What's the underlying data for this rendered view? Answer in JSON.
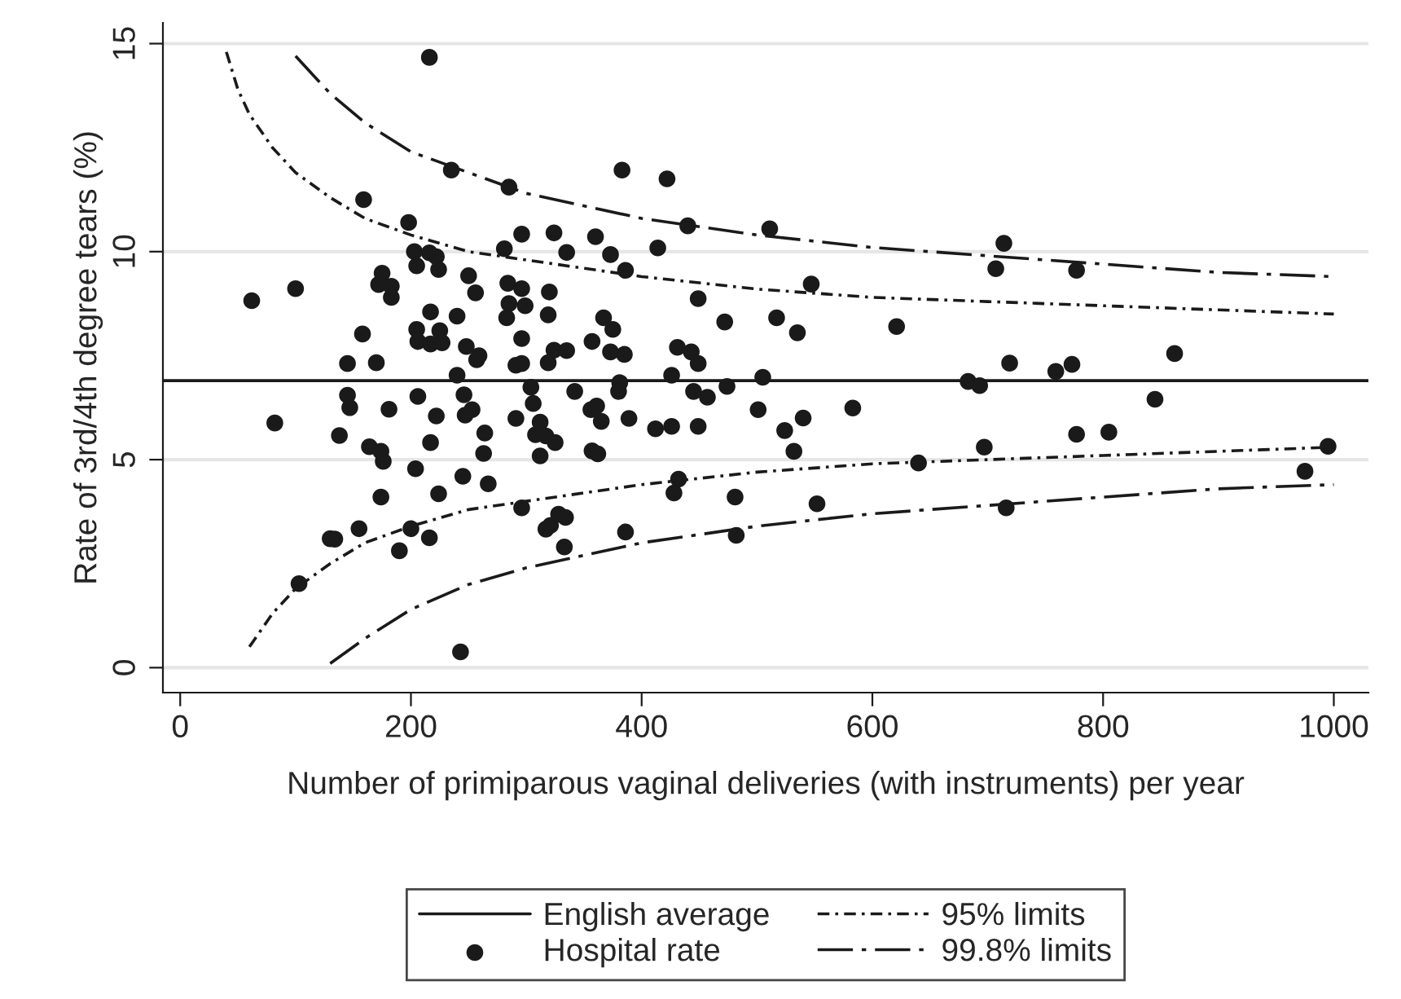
{
  "chart_data": {
    "type": "scatter",
    "xlabel": "Number of primiparous vaginal deliveries (with instruments) per year",
    "ylabel": "Rate of 3rd/4th degree tears (%)",
    "xlim": [
      -15,
      1030
    ],
    "ylim": [
      -0.6,
      15.5
    ],
    "xticks": [
      0,
      200,
      400,
      600,
      800,
      1000
    ],
    "yticks": [
      0,
      5,
      10,
      15
    ],
    "grid": "y",
    "legend": "bottom",
    "ref_lines": [
      {
        "axis": "y",
        "value": 6.9,
        "label": "English average",
        "color": "#1a1a1a",
        "line_style": "solid"
      }
    ],
    "series": [
      {
        "name": "Hospital rate",
        "marker": "circle",
        "color": "#1a1a1a",
        "x": [
          216,
          235,
          159,
          198,
          203,
          216,
          222,
          205,
          224,
          175,
          250,
          172,
          183,
          256,
          183,
          62,
          100,
          217,
          240,
          158,
          205,
          225,
          206,
          217,
          227,
          248,
          145,
          170,
          240,
          257,
          259,
          145,
          147,
          206,
          246,
          181,
          222,
          247,
          253,
          82,
          138,
          217,
          164,
          174,
          176,
          264,
          263,
          204,
          245,
          267,
          174,
          224,
          134,
          130,
          155,
          200,
          216,
          190,
          103,
          243,
          383,
          422,
          285,
          440,
          511,
          296,
          324,
          360,
          281,
          335,
          373,
          414,
          386,
          284,
          296,
          320,
          285,
          299,
          283,
          319,
          367,
          375,
          449,
          472,
          517,
          535,
          296,
          357,
          324,
          335,
          373,
          385,
          431,
          443,
          291,
          296,
          319,
          449,
          426,
          505,
          304,
          381,
          380,
          342,
          445,
          457,
          474,
          306,
          291,
          356,
          361,
          365,
          389,
          501,
          312,
          308,
          317,
          325,
          312,
          357,
          362,
          412,
          426,
          449,
          524,
          532,
          296,
          432,
          428,
          481,
          317,
          321,
          328,
          334,
          333,
          386,
          482,
          714,
          707,
          777,
          547,
          621,
          719,
          759,
          773,
          862,
          683,
          693,
          845,
          583,
          540,
          777,
          805,
          697,
          995,
          640,
          975,
          552,
          716
        ],
        "values": [
          14.67,
          11.96,
          11.25,
          10.7,
          10.0,
          9.97,
          9.88,
          9.66,
          9.57,
          9.48,
          9.42,
          9.21,
          9.17,
          9.01,
          8.9,
          8.82,
          9.11,
          8.55,
          8.45,
          8.02,
          8.13,
          8.1,
          7.84,
          7.78,
          7.81,
          7.72,
          7.31,
          7.33,
          7.03,
          7.4,
          7.5,
          6.55,
          6.25,
          6.52,
          6.56,
          6.21,
          6.05,
          6.07,
          6.2,
          5.88,
          5.58,
          5.41,
          5.31,
          5.2,
          4.96,
          5.64,
          5.15,
          4.78,
          4.6,
          4.42,
          4.1,
          4.18,
          3.09,
          3.1,
          3.34,
          3.34,
          3.12,
          2.81,
          2.02,
          0.38,
          11.96,
          11.75,
          11.55,
          10.62,
          10.55,
          10.42,
          10.45,
          10.36,
          10.07,
          9.98,
          9.93,
          10.09,
          9.55,
          9.24,
          9.11,
          9.03,
          8.75,
          8.7,
          8.41,
          8.48,
          8.41,
          8.13,
          8.87,
          8.31,
          8.41,
          8.05,
          7.91,
          7.84,
          7.63,
          7.62,
          7.59,
          7.53,
          7.7,
          7.59,
          7.27,
          7.31,
          7.33,
          7.31,
          7.03,
          6.98,
          6.74,
          6.85,
          6.64,
          6.64,
          6.64,
          6.5,
          6.76,
          6.35,
          5.99,
          6.2,
          6.29,
          5.92,
          5.99,
          6.2,
          5.9,
          5.6,
          5.57,
          5.41,
          5.09,
          5.21,
          5.14,
          5.74,
          5.8,
          5.8,
          5.7,
          5.2,
          3.84,
          4.53,
          4.2,
          4.1,
          3.33,
          3.42,
          3.69,
          3.61,
          2.9,
          3.26,
          3.18,
          10.2,
          9.59,
          9.55,
          9.22,
          8.2,
          7.32,
          7.12,
          7.29,
          7.55,
          6.88,
          6.78,
          6.45,
          6.24,
          6.0,
          5.61,
          5.66,
          5.3,
          5.32,
          4.92,
          4.72,
          3.94,
          3.84
        ]
      },
      {
        "name": "95% limits",
        "type": "line",
        "color": "#1a1a1a",
        "line_style": "dashdot",
        "x": [
          40,
          50,
          60,
          80,
          100,
          130,
          160,
          200,
          250,
          300,
          400,
          500,
          600,
          700,
          800,
          900,
          1000
        ],
        "values": [
          14.8,
          13.9,
          13.3,
          12.5,
          11.9,
          11.3,
          10.8,
          10.4,
          10.0,
          9.8,
          9.4,
          9.1,
          8.9,
          8.8,
          8.7,
          8.6,
          8.5
        ]
      },
      {
        "type": "line",
        "color": "#1a1a1a",
        "line_style": "dashdot",
        "x": [
          60,
          80,
          100,
          130,
          160,
          200,
          250,
          300,
          400,
          500,
          600,
          700,
          800,
          900,
          1000
        ],
        "values": [
          0.5,
          1.3,
          1.9,
          2.5,
          3.0,
          3.4,
          3.8,
          4.0,
          4.4,
          4.7,
          4.9,
          5.0,
          5.1,
          5.2,
          5.3
        ]
      },
      {
        "name": "99.8% limits",
        "type": "line",
        "color": "#1a1a1a",
        "line_style": "longdashdot",
        "x": [
          100,
          130,
          160,
          200,
          250,
          300,
          400,
          500,
          600,
          700,
          800,
          900,
          1000
        ],
        "values": [
          14.7,
          13.8,
          13.1,
          12.4,
          11.9,
          11.4,
          10.8,
          10.4,
          10.1,
          9.9,
          9.7,
          9.5,
          9.4
        ]
      },
      {
        "type": "line",
        "color": "#1a1a1a",
        "line_style": "longdashdot",
        "x": [
          130,
          160,
          200,
          250,
          300,
          400,
          500,
          600,
          700,
          800,
          900,
          1000
        ],
        "values": [
          0.1,
          0.7,
          1.4,
          2.0,
          2.4,
          3.0,
          3.4,
          3.7,
          3.9,
          4.1,
          4.3,
          4.4
        ]
      }
    ]
  }
}
